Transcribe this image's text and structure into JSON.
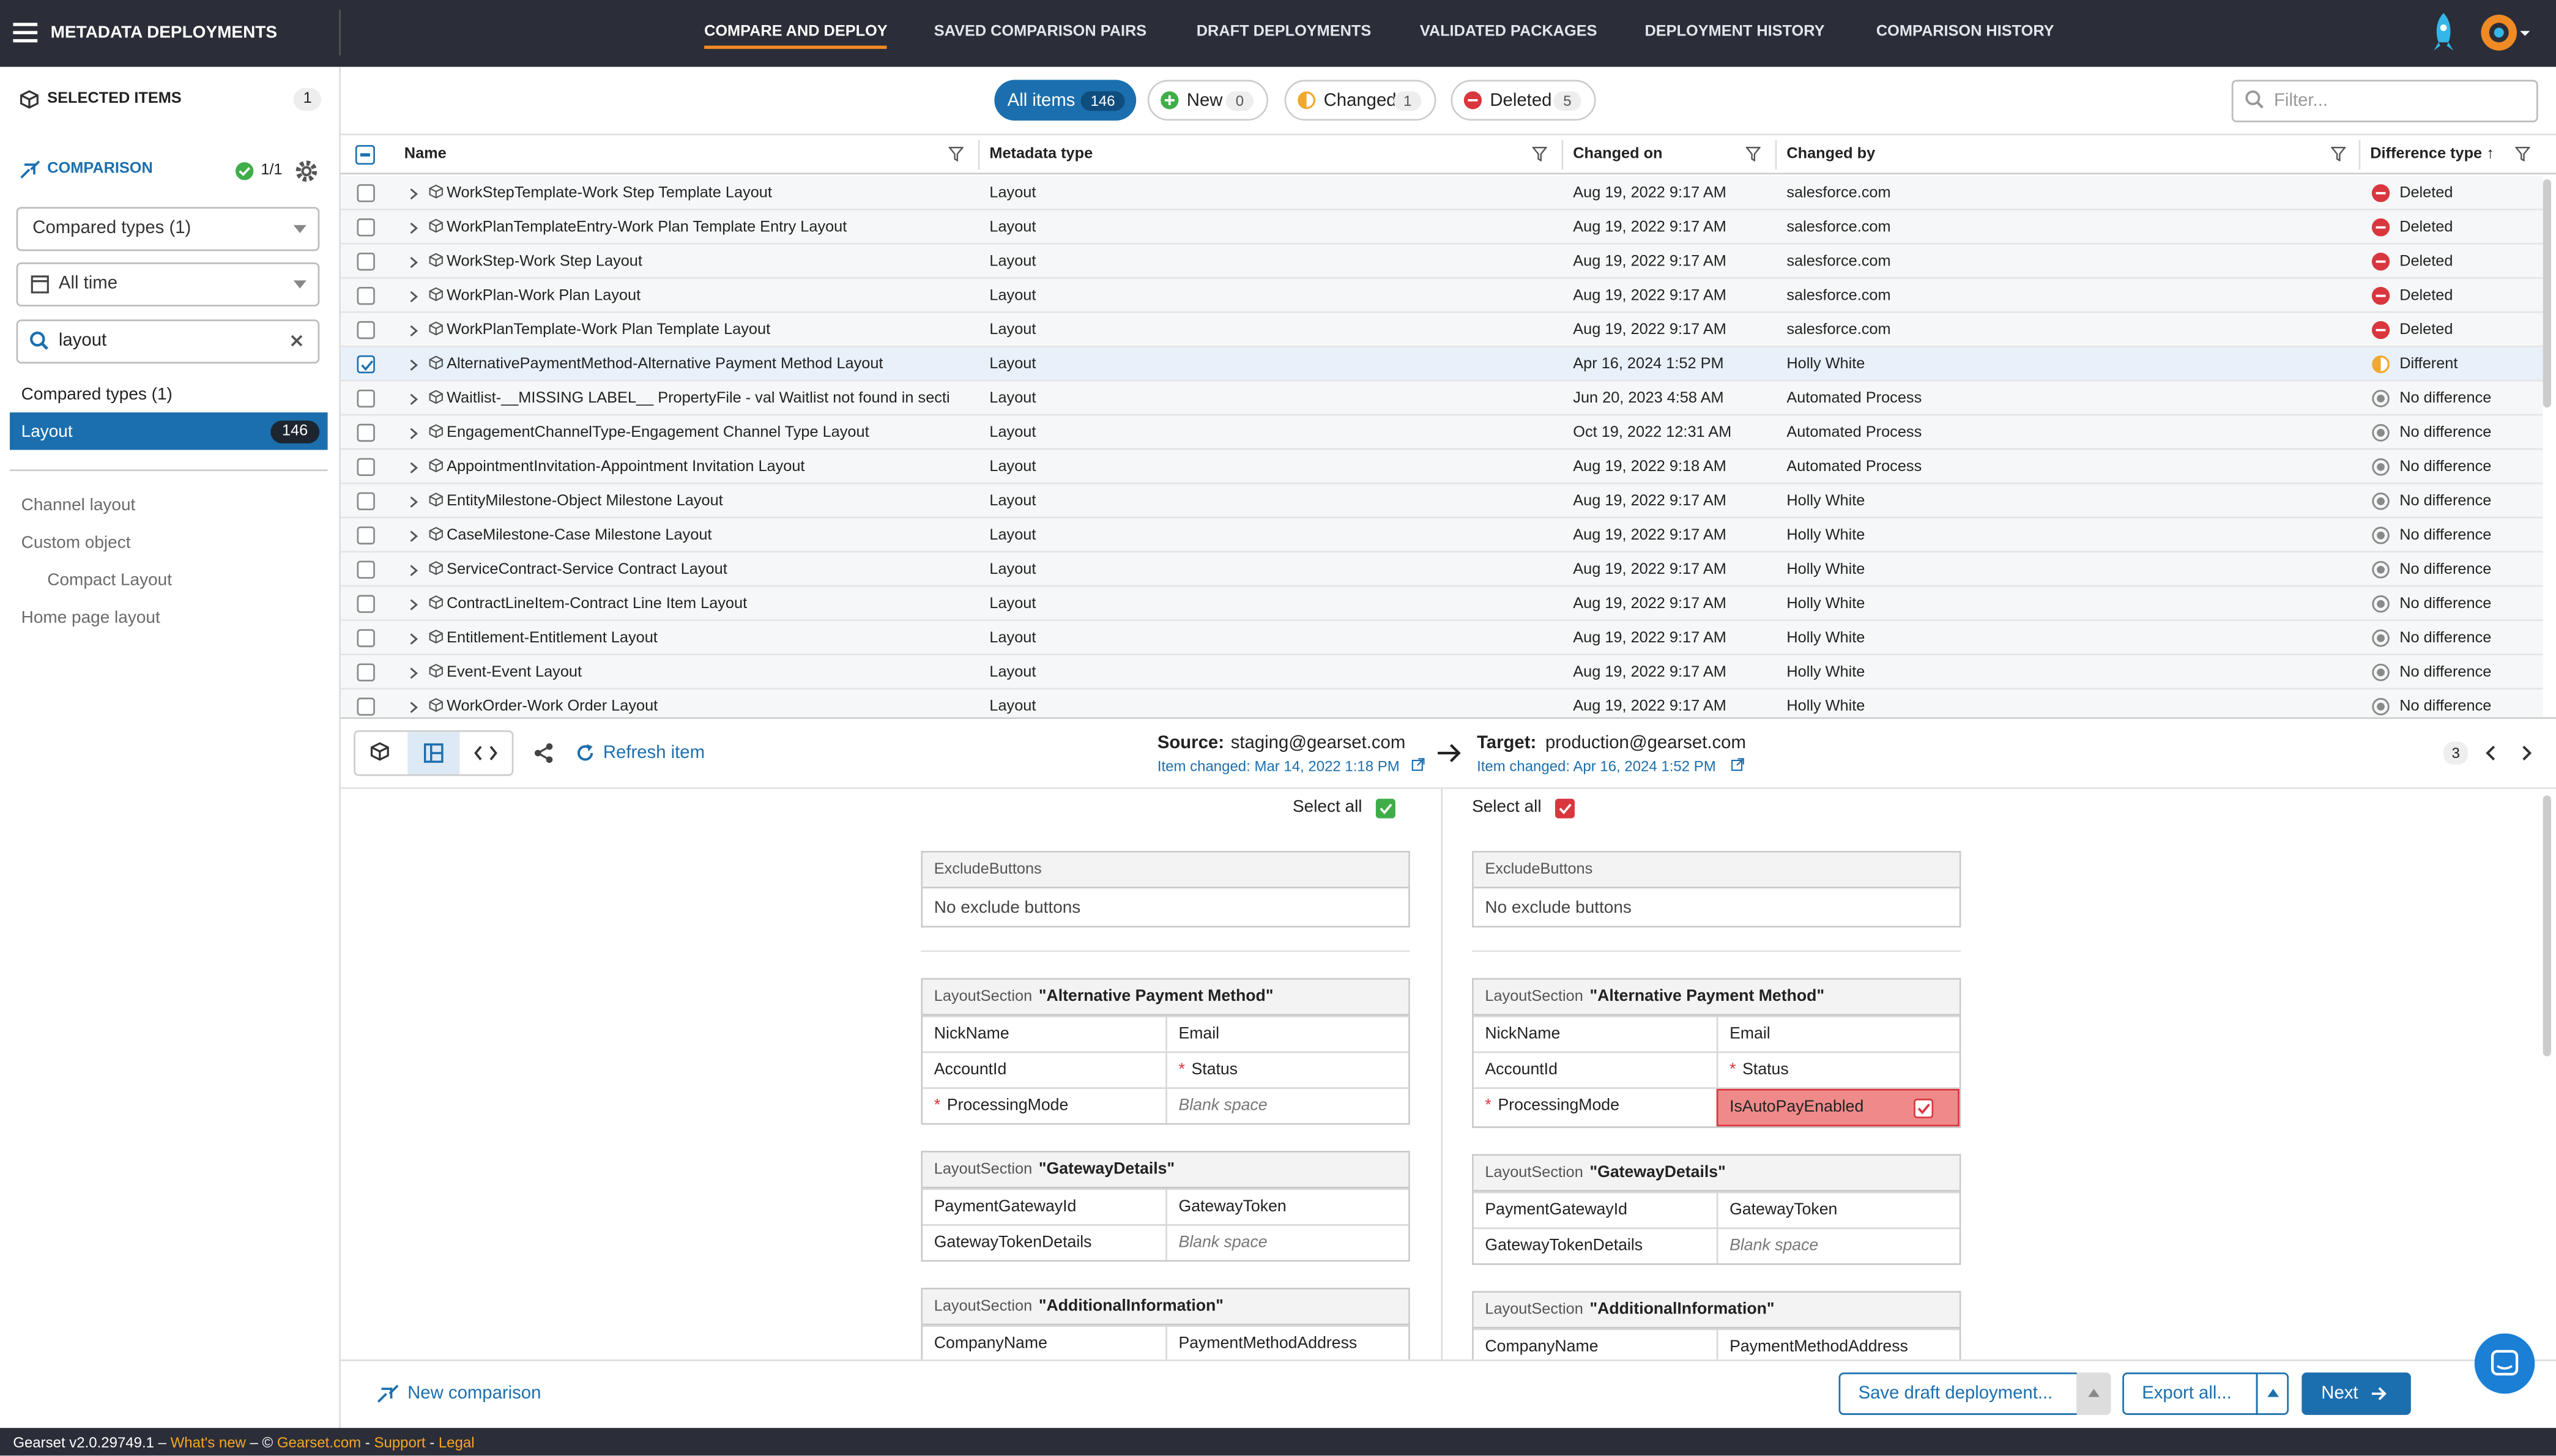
{
  "header": {
    "title": "METADATA DEPLOYMENTS",
    "tabs": [
      "COMPARE AND DEPLOY",
      "SAVED COMPARISON PAIRS",
      "DRAFT DEPLOYMENTS",
      "VALIDATED PACKAGES",
      "DEPLOYMENT HISTORY",
      "COMPARISON HISTORY"
    ]
  },
  "sidebar": {
    "selected_items": "SELECTED ITEMS",
    "selected_count": "1",
    "comparison": "COMPARISON",
    "comparison_status": "1/1",
    "type_dropdown": "Compared types (1)",
    "time_dropdown": "All time",
    "search": "layout",
    "types_heading": "Compared types (1)",
    "active_type": "Layout",
    "active_count": "146",
    "tree": [
      {
        "text": "Channel layout",
        "indent": false
      },
      {
        "text": "Custom object",
        "indent": false
      },
      {
        "text": "Compact Layout",
        "indent": true
      },
      {
        "text": "Home page layout",
        "indent": false
      }
    ]
  },
  "filters": {
    "chips": [
      {
        "text": "All items",
        "count": "146",
        "color": "#1b6fae"
      },
      {
        "text": "New",
        "count": "0",
        "color": "#3fae49"
      },
      {
        "text": "Changed",
        "count": "1",
        "color": "#f0a92e"
      },
      {
        "text": "Deleted",
        "count": "5",
        "color": "#d9363e"
      }
    ],
    "placeholder": "Filter..."
  },
  "table": {
    "columns": [
      "Name",
      "Metadata type",
      "Changed on",
      "Changed by",
      "Difference type ↑"
    ],
    "rows": [
      {
        "name": "WorkStepTemplate-Work Step Template Layout",
        "type": "Layout",
        "changed_on": "Aug 19, 2022 9:17 AM",
        "changed_by": "salesforce.com",
        "difference": "Deleted",
        "icon_color": "#d9363e",
        "checked": false
      },
      {
        "name": "WorkPlanTemplateEntry-Work Plan Template Entry Layout",
        "type": "Layout",
        "changed_on": "Aug 19, 2022 9:17 AM",
        "changed_by": "salesforce.com",
        "difference": "Deleted",
        "icon_color": "#d9363e",
        "checked": false
      },
      {
        "name": "WorkStep-Work Step Layout",
        "type": "Layout",
        "changed_on": "Aug 19, 2022 9:17 AM",
        "changed_by": "salesforce.com",
        "difference": "Deleted",
        "icon_color": "#d9363e",
        "checked": false
      },
      {
        "name": "WorkPlan-Work Plan Layout",
        "type": "Layout",
        "changed_on": "Aug 19, 2022 9:17 AM",
        "changed_by": "salesforce.com",
        "difference": "Deleted",
        "icon_color": "#d9363e",
        "checked": false
      },
      {
        "name": "WorkPlanTemplate-Work Plan Template Layout",
        "type": "Layout",
        "changed_on": "Aug 19, 2022 9:17 AM",
        "changed_by": "salesforce.com",
        "difference": "Deleted",
        "icon_color": "#d9363e",
        "checked": false
      },
      {
        "name": "AlternativePaymentMethod-Alternative Payment Method Layout",
        "type": "Layout",
        "changed_on": "Apr 16, 2024 1:52 PM",
        "changed_by": "Holly White",
        "difference": "Different",
        "icon_color": "#f0a92e",
        "checked": true
      },
      {
        "name": "Waitlist-__MISSING LABEL__ PropertyFile - val Waitlist not found in secti",
        "type": "Layout",
        "changed_on": "Jun 20, 2023 4:58 AM",
        "changed_by": "Automated Process",
        "difference": "No difference",
        "icon_color": "#8a8a8a",
        "checked": false
      },
      {
        "name": "EngagementChannelType-Engagement Channel Type Layout",
        "type": "Layout",
        "changed_on": "Oct 19, 2022 12:31 AM",
        "changed_by": "Automated Process",
        "difference": "No difference",
        "icon_color": "#8a8a8a",
        "checked": false
      },
      {
        "name": "AppointmentInvitation-Appointment Invitation Layout",
        "type": "Layout",
        "changed_on": "Aug 19, 2022 9:18 AM",
        "changed_by": "Automated Process",
        "difference": "No difference",
        "icon_color": "#8a8a8a",
        "checked": false
      },
      {
        "name": "EntityMilestone-Object Milestone Layout",
        "type": "Layout",
        "changed_on": "Aug 19, 2022 9:17 AM",
        "changed_by": "Holly White",
        "difference": "No difference",
        "icon_color": "#8a8a8a",
        "checked": false
      },
      {
        "name": "CaseMilestone-Case Milestone Layout",
        "type": "Layout",
        "changed_on": "Aug 19, 2022 9:17 AM",
        "changed_by": "Holly White",
        "difference": "No difference",
        "icon_color": "#8a8a8a",
        "checked": false
      },
      {
        "name": "ServiceContract-Service Contract Layout",
        "type": "Layout",
        "changed_on": "Aug 19, 2022 9:17 AM",
        "changed_by": "Holly White",
        "difference": "No difference",
        "icon_color": "#8a8a8a",
        "checked": false
      },
      {
        "name": "ContractLineItem-Contract Line Item Layout",
        "type": "Layout",
        "changed_on": "Aug 19, 2022 9:17 AM",
        "changed_by": "Holly White",
        "difference": "No difference",
        "icon_color": "#8a8a8a",
        "checked": false
      },
      {
        "name": "Entitlement-Entitlement Layout",
        "type": "Layout",
        "changed_on": "Aug 19, 2022 9:17 AM",
        "changed_by": "Holly White",
        "difference": "No difference",
        "icon_color": "#8a8a8a",
        "checked": false
      },
      {
        "name": "Event-Event Layout",
        "type": "Layout",
        "changed_on": "Aug 19, 2022 9:17 AM",
        "changed_by": "Holly White",
        "difference": "No difference",
        "icon_color": "#8a8a8a",
        "checked": false
      },
      {
        "name": "WorkOrder-Work Order Layout",
        "type": "Layout",
        "changed_on": "Aug 19, 2022 9:17 AM",
        "changed_by": "Holly White",
        "difference": "No difference",
        "icon_color": "#8a8a8a",
        "checked": false
      }
    ]
  },
  "detail": {
    "refresh": "Refresh item",
    "source_label": "Source:",
    "source_org": "staging@gearset.com",
    "source_changed": "Item changed: Mar 14, 2022 1:18 PM",
    "target_label": "Target:",
    "target_org": "production@gearset.com",
    "target_changed": "Item changed: Apr 16, 2024 1:52 PM",
    "counter": "3",
    "select_all_source": "Select all",
    "select_all_target": "Select all"
  },
  "panels": [
    {
      "side": "source",
      "check_color": "#3fae49",
      "sections": [
        {
          "label": "ExcludeButtons",
          "body": "No exclude buttons"
        },
        {
          "label": "LayoutSection",
          "title": "\"Alternative Payment Method\"",
          "rows": [
            [
              {
                "text": "NickName"
              },
              {
                "text": "Email"
              }
            ],
            [
              {
                "text": "AccountId"
              },
              {
                "mark": "*",
                "text": "Status"
              }
            ],
            [
              {
                "mark": "*",
                "text": "ProcessingMode"
              },
              {
                "text": "Blank space",
                "blank": true
              }
            ]
          ]
        },
        {
          "label": "LayoutSection",
          "title": "\"GatewayDetails\"",
          "rows": [
            [
              {
                "text": "PaymentGatewayId"
              },
              {
                "text": "GatewayToken"
              }
            ],
            [
              {
                "text": "GatewayTokenDetails"
              },
              {
                "text": "Blank space",
                "blank": true
              }
            ]
          ]
        },
        {
          "label": "LayoutSection",
          "title": "\"AdditionalInformation\"",
          "rows": [
            [
              {
                "text": "CompanyName"
              },
              {
                "text": "PaymentMethodAddress"
              }
            ]
          ]
        }
      ]
    },
    {
      "side": "target",
      "check_color": "#d9363e",
      "sections": [
        {
          "label": "ExcludeButtons",
          "body": "No exclude buttons"
        },
        {
          "label": "LayoutSection",
          "title": "\"Alternative Payment Method\"",
          "rows": [
            [
              {
                "text": "NickName"
              },
              {
                "text": "Email"
              }
            ],
            [
              {
                "text": "AccountId"
              },
              {
                "mark": "*",
                "text": "Status"
              }
            ],
            [
              {
                "mark": "*",
                "text": "ProcessingMode"
              },
              {
                "text": "IsAutoPayEnabled",
                "changed": true
              }
            ]
          ]
        },
        {
          "label": "LayoutSection",
          "title": "\"GatewayDetails\"",
          "rows": [
            [
              {
                "text": "PaymentGatewayId"
              },
              {
                "text": "GatewayToken"
              }
            ],
            [
              {
                "text": "GatewayTokenDetails"
              },
              {
                "text": "Blank space",
                "blank": true
              }
            ]
          ]
        },
        {
          "label": "LayoutSection",
          "title": "\"AdditionalInformation\"",
          "rows": [
            [
              {
                "text": "CompanyName"
              },
              {
                "text": "PaymentMethodAddress"
              }
            ]
          ]
        }
      ]
    }
  ],
  "footer": {
    "new_comparison": "New comparison",
    "save_draft": "Save draft deployment...",
    "export": "Export all...",
    "next": "Next"
  },
  "status_bar": [
    "Gearset v2.0.29749.1 – ",
    "What's new",
    " – © ",
    "Gearset.com",
    " - ",
    "Support",
    " - ",
    "Legal"
  ]
}
